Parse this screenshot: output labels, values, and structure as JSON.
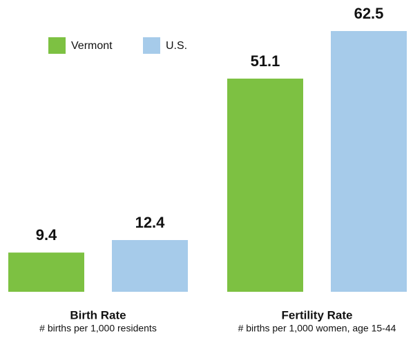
{
  "chart_data": {
    "type": "bar",
    "categories": [
      "Birth Rate",
      "Fertility Rate"
    ],
    "category_notes": [
      "# births per 1,000 residents",
      "# births per 1,000 women, age 15-44"
    ],
    "series": [
      {
        "name": "Vermont",
        "color": "#7dc142",
        "values": [
          9.4,
          51.1
        ]
      },
      {
        "name": "U.S.",
        "color": "#a6cbea",
        "values": [
          12.4,
          62.5
        ]
      }
    ]
  }
}
